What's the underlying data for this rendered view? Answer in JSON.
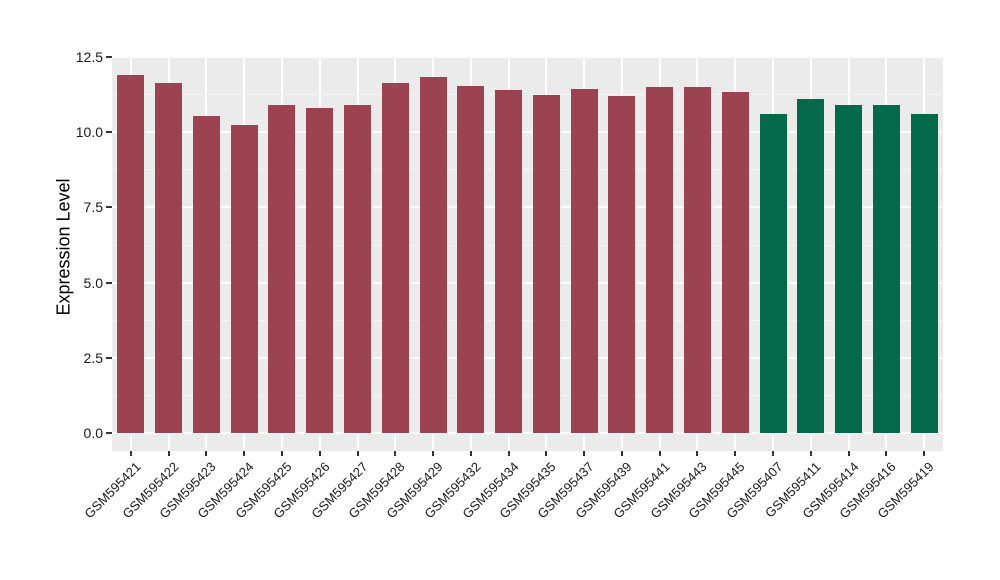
{
  "chart_data": {
    "type": "bar",
    "title": "",
    "xlabel": "",
    "ylabel": "Expression Level",
    "ylim": [
      0,
      12.5
    ],
    "yticks": [
      0.0,
      2.5,
      5.0,
      7.5,
      10.0,
      12.5
    ],
    "ytick_labels": [
      "0.0",
      "2.5",
      "5.0",
      "7.5",
      "10.0",
      "12.5"
    ],
    "grid": "major and minor horizontal white gridlines, major vertical white gridlines at each category, on gray panel",
    "legend": "none",
    "categories": [
      "GSM595421",
      "GSM595422",
      "GSM595423",
      "GSM595424",
      "GSM595425",
      "GSM595426",
      "GSM595427",
      "GSM595428",
      "GSM595429",
      "GSM595432",
      "GSM595434",
      "GSM595435",
      "GSM595437",
      "GSM595439",
      "GSM595441",
      "GSM595443",
      "GSM595445",
      "GSM595407",
      "GSM595411",
      "GSM595414",
      "GSM595416",
      "GSM595419"
    ],
    "values": [
      11.9,
      11.65,
      10.55,
      10.25,
      10.9,
      10.8,
      10.9,
      11.65,
      11.85,
      11.55,
      11.4,
      11.25,
      11.45,
      11.2,
      11.5,
      11.5,
      11.35,
      10.6,
      11.1,
      10.9,
      10.9,
      10.6
    ],
    "bar_groups": [
      "A",
      "A",
      "A",
      "A",
      "A",
      "A",
      "A",
      "A",
      "A",
      "A",
      "A",
      "A",
      "A",
      "A",
      "A",
      "A",
      "A",
      "B",
      "B",
      "B",
      "B",
      "B"
    ],
    "group_colors": {
      "A": "#9B4350",
      "B": "#04684A"
    },
    "colors": {
      "panel_background": "#EBEBEB",
      "major_grid": "#FFFFFF",
      "minor_grid": "#F5F5F5",
      "tick_marks": "#333333",
      "axis_text": "#1A1A1A",
      "axis_title": "#000000"
    }
  }
}
